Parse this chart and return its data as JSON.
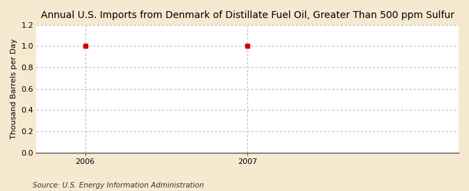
{
  "title": "Annual U.S. Imports from Denmark of Distillate Fuel Oil, Greater Than 500 ppm Sulfur",
  "ylabel": "Thousand Barrels per Day",
  "source": "Source: U.S. Energy Information Administration",
  "x_data": [
    2006,
    2007
  ],
  "y_data": [
    1.0,
    1.0
  ],
  "xlim": [
    2005.7,
    2008.3
  ],
  "ylim": [
    0.0,
    1.2
  ],
  "yticks": [
    0.0,
    0.2,
    0.4,
    0.6,
    0.8,
    1.0,
    1.2
  ],
  "xticks": [
    2006,
    2007
  ],
  "marker_color": "#cc0000",
  "marker": "s",
  "marker_size": 4,
  "figure_bg_color": "#f5ead0",
  "plot_bg_color": "#ffffff",
  "grid_color": "#aaaaaa",
  "title_fontsize": 10,
  "label_fontsize": 8,
  "tick_fontsize": 8,
  "source_fontsize": 7.5
}
